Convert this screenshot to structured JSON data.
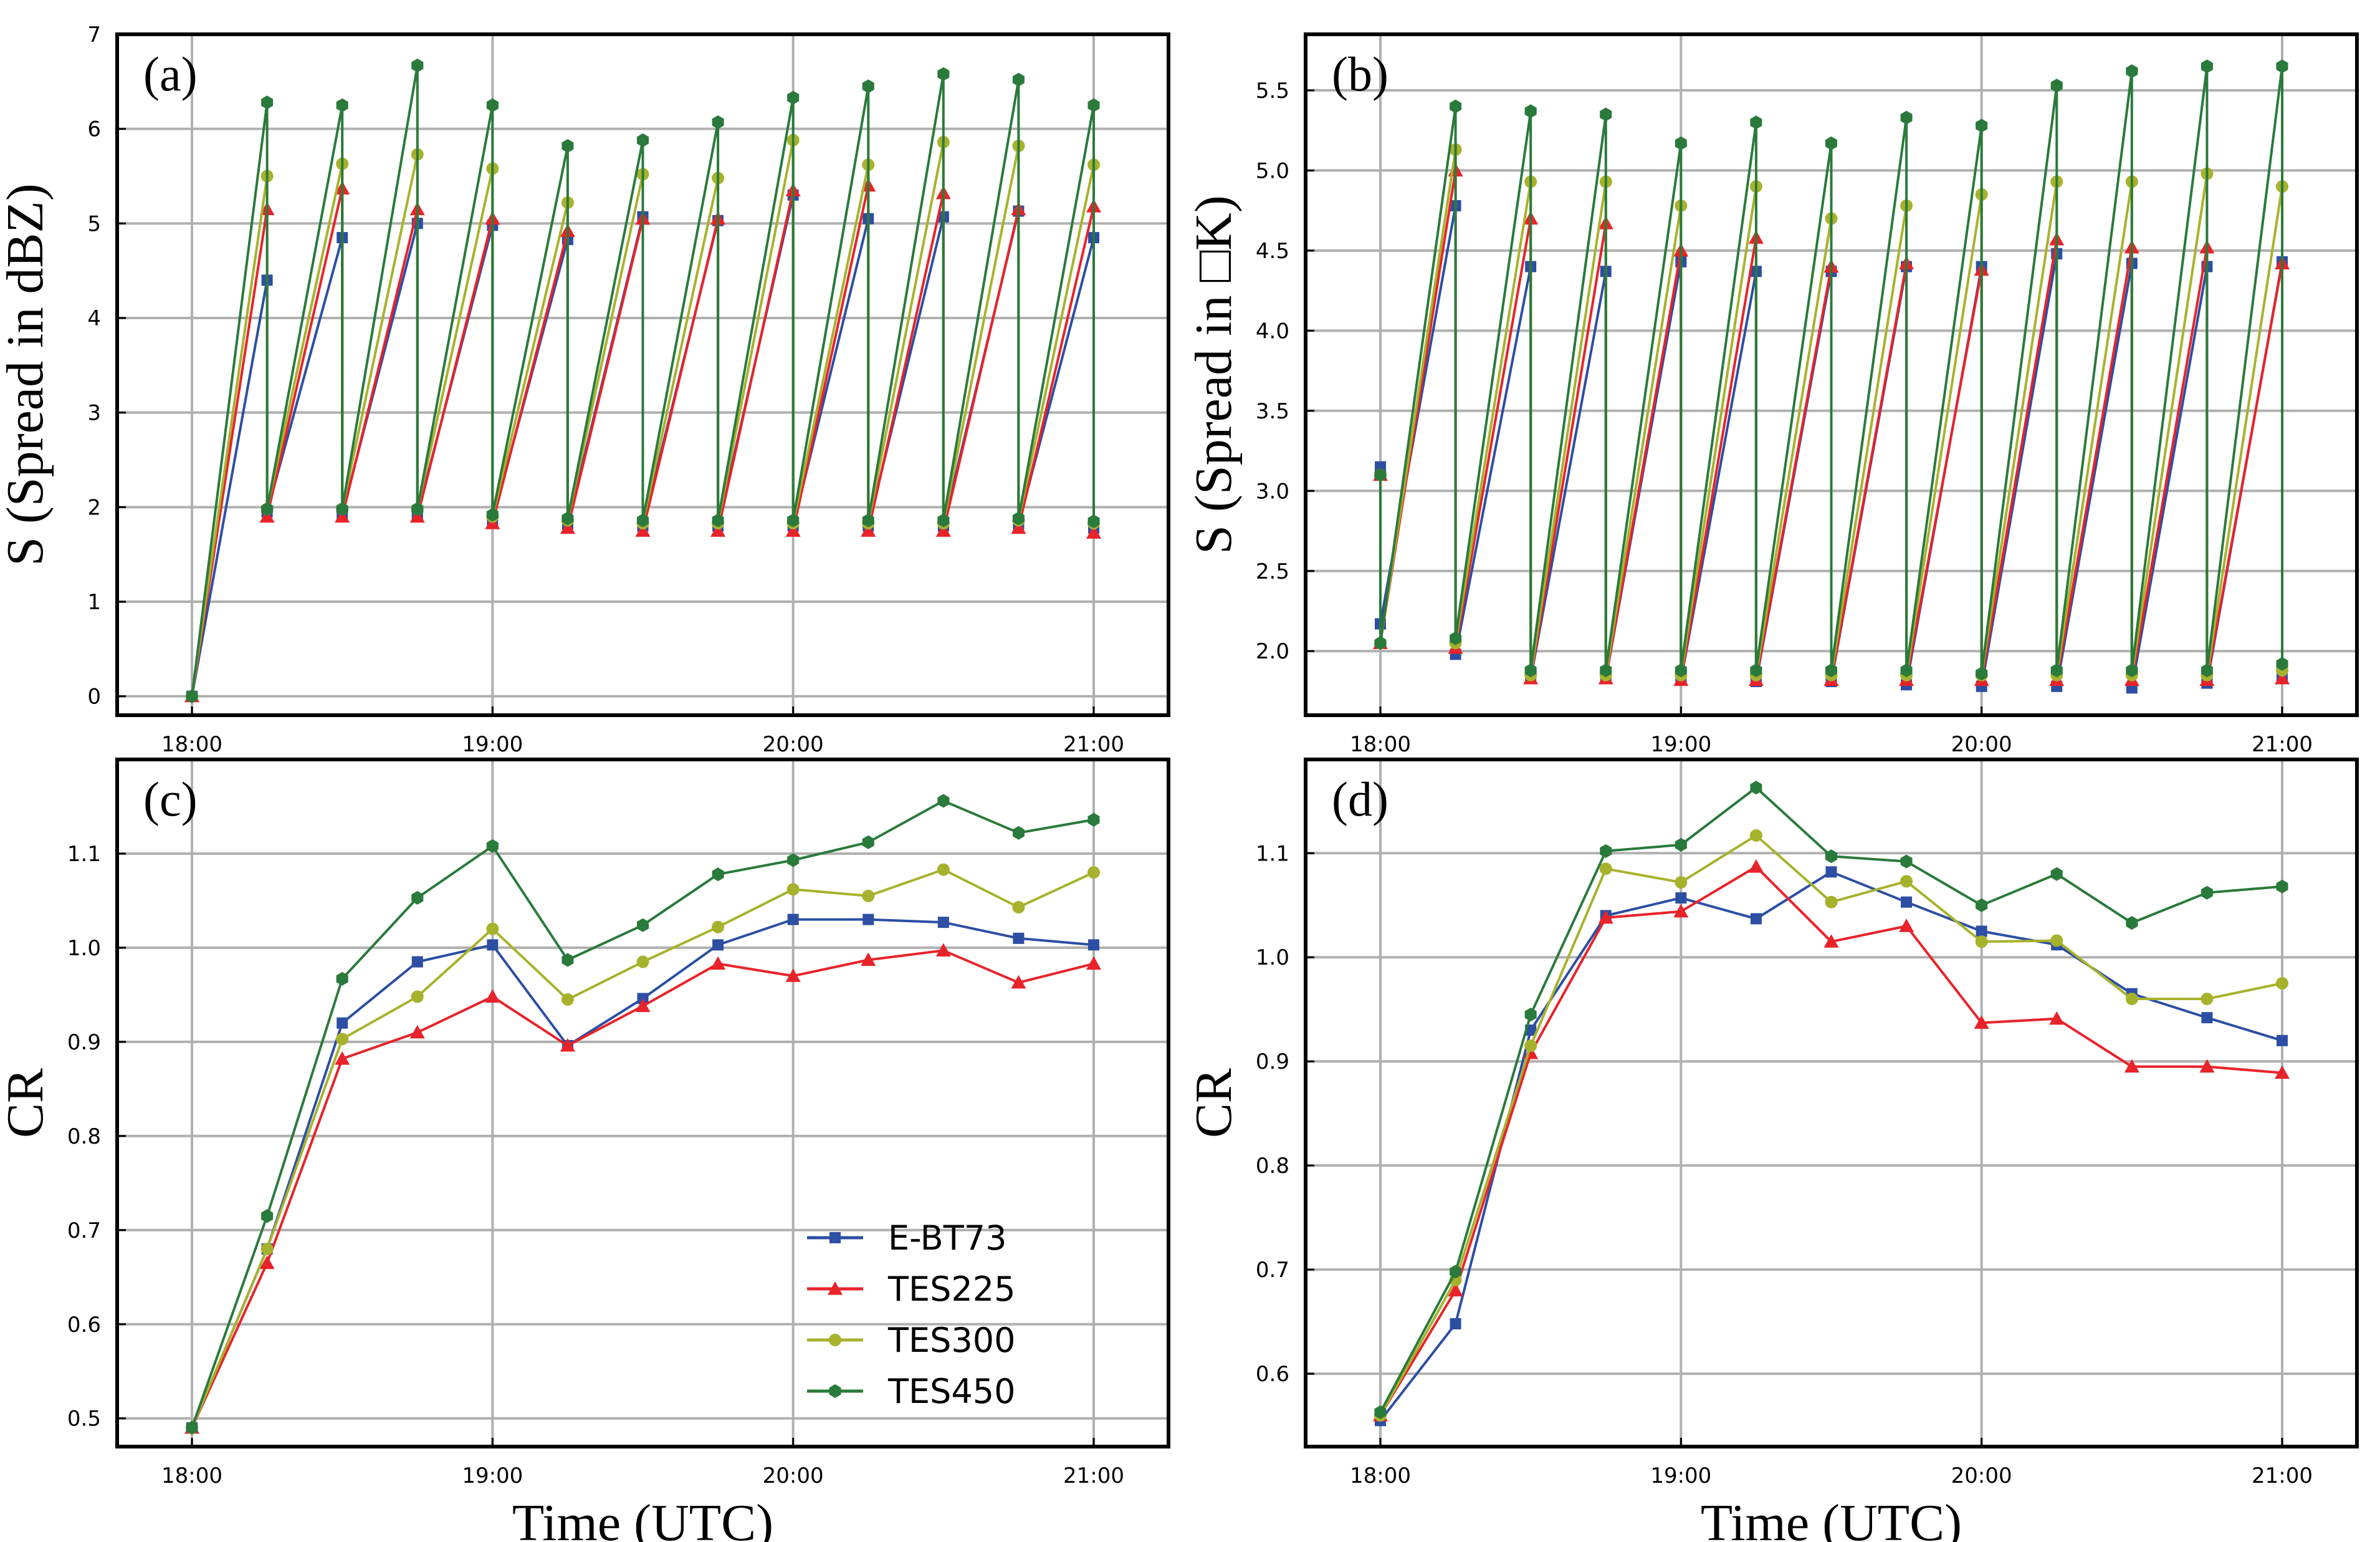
{
  "colors": {
    "E-BT73": "#2c4ea3",
    "TES225": "#e8232a",
    "TES300": "#a7b22c",
    "TES450": "#2a7a3b"
  },
  "legend": {
    "items": [
      {
        "label": "E-BT73",
        "series": "E-BT73"
      },
      {
        "label": "TES225",
        "series": "TES225"
      },
      {
        "label": "TES300",
        "series": "TES300"
      },
      {
        "label": "TES450",
        "series": "TES450"
      }
    ]
  },
  "chart_data": [
    {
      "id": "a",
      "type": "line",
      "panel_label": "(a)",
      "ylabel": "S (Spread in dBZ)",
      "xlabel": "",
      "x_tick_labels": [
        "18:00",
        "19:00",
        "20:00",
        "21:00"
      ],
      "y_tick_labels": [
        "0",
        "1",
        "2",
        "3",
        "4",
        "5",
        "6",
        "7"
      ],
      "ylim": [
        -0.2,
        7.0
      ],
      "grid": true,
      "x": [
        "18:00",
        "18:15",
        "18:15",
        "18:30",
        "18:30",
        "18:45",
        "18:45",
        "19:00",
        "19:00",
        "19:15",
        "19:15",
        "19:30",
        "19:30",
        "19:45",
        "19:45",
        "20:00",
        "20:00",
        "20:15",
        "20:15",
        "20:30",
        "20:30",
        "20:45",
        "20:45",
        "21:00",
        "21:00"
      ],
      "series": [
        {
          "name": "E-BT73",
          "values": [
            0,
            4.4,
            1.95,
            4.85,
            1.93,
            5.0,
            1.93,
            4.98,
            1.86,
            4.83,
            1.82,
            5.07,
            1.8,
            5.03,
            1.8,
            5.3,
            1.8,
            5.05,
            1.8,
            5.07,
            1.8,
            5.13,
            1.82,
            4.85,
            1.78
          ]
        },
        {
          "name": "TES225",
          "values": [
            0,
            5.15,
            1.9,
            5.37,
            1.9,
            5.15,
            1.9,
            5.05,
            1.83,
            4.92,
            1.78,
            5.05,
            1.75,
            5.05,
            1.75,
            5.35,
            1.75,
            5.4,
            1.75,
            5.32,
            1.75,
            5.15,
            1.78,
            5.18,
            1.73
          ]
        },
        {
          "name": "TES300",
          "values": [
            0,
            5.5,
            1.98,
            5.63,
            1.98,
            5.73,
            1.98,
            5.58,
            1.9,
            5.22,
            1.86,
            5.52,
            1.83,
            5.48,
            1.83,
            5.88,
            1.83,
            5.62,
            1.83,
            5.86,
            1.83,
            5.82,
            1.86,
            5.62,
            1.83
          ]
        },
        {
          "name": "TES450",
          "values": [
            0,
            6.28,
            1.98,
            6.25,
            1.98,
            6.67,
            1.98,
            6.25,
            1.92,
            5.82,
            1.88,
            5.88,
            1.86,
            6.07,
            1.86,
            6.33,
            1.86,
            6.45,
            1.86,
            6.58,
            1.86,
            6.52,
            1.88,
            6.25,
            1.85
          ]
        }
      ]
    },
    {
      "id": "b",
      "type": "line",
      "panel_label": "(b)",
      "ylabel": "S (Spread in □K)",
      "xlabel": "",
      "x_tick_labels": [
        "18:00",
        "19:00",
        "20:00",
        "21:00"
      ],
      "y_tick_labels": [
        "2.0",
        "2.5",
        "3.0",
        "3.5",
        "4.0",
        "4.5",
        "5.0",
        "5.5"
      ],
      "ylim": [
        1.6,
        5.85
      ],
      "grid": true,
      "x": [
        "18:00",
        "18:00",
        "18:15",
        "18:15",
        "18:30",
        "18:30",
        "18:45",
        "18:45",
        "19:00",
        "19:00",
        "19:15",
        "19:15",
        "19:30",
        "19:30",
        "19:45",
        "19:45",
        "20:00",
        "20:00",
        "20:15",
        "20:15",
        "20:30",
        "20:30",
        "20:45",
        "20:45",
        "21:00",
        "21:00"
      ],
      "series": [
        {
          "name": "E-BT73",
          "values": [
            3.15,
            2.17,
            4.78,
            1.98,
            4.4,
            1.83,
            4.37,
            1.83,
            4.43,
            1.82,
            4.37,
            1.81,
            4.37,
            1.81,
            4.4,
            1.79,
            4.4,
            1.78,
            4.48,
            1.78,
            4.42,
            1.77,
            4.4,
            1.8,
            4.43,
            1.83
          ]
        },
        {
          "name": "TES225",
          "values": [
            3.1,
            2.05,
            5.0,
            2.02,
            4.7,
            1.83,
            4.67,
            1.83,
            4.5,
            1.82,
            4.58,
            1.82,
            4.4,
            1.82,
            4.42,
            1.82,
            4.38,
            1.82,
            4.57,
            1.82,
            4.52,
            1.82,
            4.52,
            1.82,
            4.42,
            1.83
          ]
        },
        {
          "name": "TES300",
          "values": [
            3.1,
            2.05,
            5.13,
            2.05,
            4.93,
            1.85,
            4.93,
            1.85,
            4.78,
            1.85,
            4.9,
            1.85,
            4.7,
            1.85,
            4.78,
            1.85,
            4.85,
            1.85,
            4.93,
            1.85,
            4.93,
            1.85,
            4.98,
            1.85,
            4.9,
            1.88
          ]
        },
        {
          "name": "TES450",
          "values": [
            3.1,
            2.05,
            5.4,
            2.08,
            5.37,
            1.88,
            5.35,
            1.88,
            5.17,
            1.88,
            5.3,
            1.88,
            5.17,
            1.88,
            5.33,
            1.88,
            5.28,
            1.86,
            5.53,
            1.88,
            5.62,
            1.88,
            5.65,
            1.88,
            5.65,
            1.92
          ]
        }
      ]
    },
    {
      "id": "c",
      "type": "line",
      "panel_label": "(c)",
      "ylabel": "CR",
      "xlabel": "Time (UTC)",
      "x_tick_labels": [
        "18:00",
        "19:00",
        "20:00",
        "21:00"
      ],
      "y_tick_labels": [
        "0.5",
        "0.6",
        "0.7",
        "0.8",
        "0.9",
        "1.0",
        "1.1"
      ],
      "ylim": [
        0.47,
        1.2
      ],
      "grid": true,
      "x": [
        "18:00",
        "18:15",
        "18:30",
        "18:45",
        "19:00",
        "19:15",
        "19:30",
        "19:45",
        "20:00",
        "20:15",
        "20:30",
        "20:45",
        "21:00"
      ],
      "series": [
        {
          "name": "E-BT73",
          "values": [
            0.49,
            0.68,
            0.92,
            0.985,
            1.003,
            0.896,
            0.946,
            1.003,
            1.03,
            1.03,
            1.027,
            1.01,
            1.003
          ]
        },
        {
          "name": "TES225",
          "values": [
            0.49,
            0.665,
            0.882,
            0.91,
            0.948,
            0.896,
            0.938,
            0.983,
            0.97,
            0.987,
            0.997,
            0.963,
            0.983
          ]
        },
        {
          "name": "TES300",
          "values": [
            0.49,
            0.68,
            0.903,
            0.948,
            1.02,
            0.945,
            0.985,
            1.022,
            1.062,
            1.055,
            1.083,
            1.043,
            1.08
          ]
        },
        {
          "name": "TES450",
          "values": [
            0.49,
            0.715,
            0.967,
            1.053,
            1.108,
            0.987,
            1.024,
            1.078,
            1.093,
            1.112,
            1.156,
            1.122,
            1.136
          ]
        }
      ]
    },
    {
      "id": "d",
      "type": "line",
      "panel_label": "(d)",
      "ylabel": "CR",
      "xlabel": "Time (UTC)",
      "x_tick_labels": [
        "18:00",
        "19:00",
        "20:00",
        "21:00"
      ],
      "y_tick_labels": [
        "0.6",
        "0.7",
        "0.8",
        "0.9",
        "1.0",
        "1.1"
      ],
      "ylim": [
        0.53,
        1.19
      ],
      "grid": true,
      "x": [
        "18:00",
        "18:15",
        "18:30",
        "18:45",
        "19:00",
        "19:15",
        "19:30",
        "19:45",
        "20:00",
        "20:15",
        "20:30",
        "20:45",
        "21:00"
      ],
      "series": [
        {
          "name": "E-BT73",
          "values": [
            0.555,
            0.648,
            0.93,
            1.04,
            1.057,
            1.037,
            1.082,
            1.053,
            1.025,
            1.012,
            0.965,
            0.942,
            0.92
          ]
        },
        {
          "name": "TES225",
          "values": [
            0.56,
            0.68,
            0.908,
            1.038,
            1.044,
            1.087,
            1.015,
            1.03,
            0.937,
            0.941,
            0.895,
            0.895,
            0.889
          ]
        },
        {
          "name": "TES300",
          "values": [
            0.56,
            0.69,
            0.915,
            1.085,
            1.072,
            1.117,
            1.053,
            1.073,
            1.015,
            1.016,
            0.96,
            0.96,
            0.975
          ]
        },
        {
          "name": "TES450",
          "values": [
            0.563,
            0.698,
            0.945,
            1.102,
            1.108,
            1.163,
            1.097,
            1.092,
            1.05,
            1.08,
            1.033,
            1.062,
            1.068
          ]
        }
      ]
    }
  ]
}
